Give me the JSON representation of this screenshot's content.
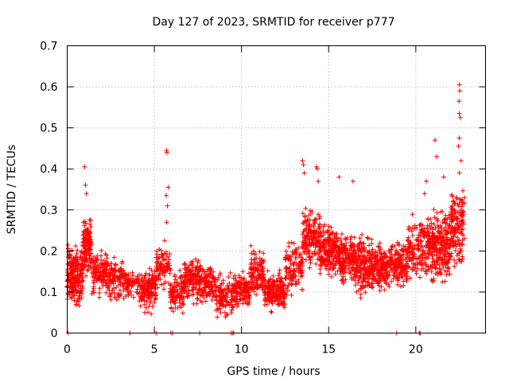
{
  "chart_data": {
    "type": "scatter",
    "title": "Day 127 of 2023, SRMTID for receiver p777",
    "xlabel": "GPS time / hours",
    "ylabel": "SRMTID / TECUs",
    "xlim": [
      0,
      24
    ],
    "ylim": [
      0,
      0.7
    ],
    "x_ticks": [
      0,
      5,
      10,
      15,
      20
    ],
    "x_tick_labels": [
      "0",
      "5",
      "10",
      "15",
      "20"
    ],
    "y_ticks": [
      0,
      0.1,
      0.2,
      0.3,
      0.4,
      0.5,
      0.6,
      0.7
    ],
    "y_tick_labels": [
      "0",
      "0.1",
      "0.2",
      "0.3",
      "0.4",
      "0.5",
      "0.6",
      "0.7"
    ],
    "grid": true,
    "marker": "plus",
    "color": "#ff0000",
    "series": [
      {
        "name": "SRMTID",
        "segments": [
          {
            "x": [
              0.0,
              0.9
            ],
            "y": [
              0.05,
              0.23
            ],
            "count": 220
          },
          {
            "x": [
              0.9,
              1.4
            ],
            "y": [
              0.13,
              0.3
            ],
            "count": 120
          },
          {
            "x": [
              1.4,
              2.4
            ],
            "y": [
              0.07,
              0.22
            ],
            "count": 130
          },
          {
            "x": [
              2.4,
              3.4
            ],
            "y": [
              0.06,
              0.2
            ],
            "count": 110
          },
          {
            "x": [
              3.4,
              4.2
            ],
            "y": [
              0.07,
              0.17
            ],
            "count": 60
          },
          {
            "x": [
              4.2,
              5.1
            ],
            "y": [
              0.04,
              0.17
            ],
            "count": 140
          },
          {
            "x": [
              5.1,
              5.9
            ],
            "y": [
              0.09,
              0.24
            ],
            "count": 80
          },
          {
            "x": [
              5.9,
              6.7
            ],
            "y": [
              0.04,
              0.16
            ],
            "count": 100
          },
          {
            "x": [
              6.7,
              7.6
            ],
            "y": [
              0.06,
              0.2
            ],
            "count": 140
          },
          {
            "x": [
              7.6,
              8.5
            ],
            "y": [
              0.06,
              0.18
            ],
            "count": 120
          },
          {
            "x": [
              8.5,
              9.5
            ],
            "y": [
              0.02,
              0.16
            ],
            "count": 110
          },
          {
            "x": [
              9.5,
              10.5
            ],
            "y": [
              0.05,
              0.16
            ],
            "count": 130
          },
          {
            "x": [
              10.5,
              11.3
            ],
            "y": [
              0.08,
              0.22
            ],
            "count": 120
          },
          {
            "x": [
              11.3,
              12.5
            ],
            "y": [
              0.04,
              0.16
            ],
            "count": 200
          },
          {
            "x": [
              12.5,
              13.5
            ],
            "y": [
              0.07,
              0.24
            ],
            "count": 120
          },
          {
            "x": [
              13.5,
              14.5
            ],
            "y": [
              0.15,
              0.32
            ],
            "count": 160
          },
          {
            "x": [
              14.5,
              15.5
            ],
            "y": [
              0.12,
              0.28
            ],
            "count": 180
          },
          {
            "x": [
              15.5,
              16.5
            ],
            "y": [
              0.1,
              0.27
            ],
            "count": 180
          },
          {
            "x": [
              16.5,
              17.5
            ],
            "y": [
              0.08,
              0.25
            ],
            "count": 180
          },
          {
            "x": [
              17.5,
              18.5
            ],
            "y": [
              0.08,
              0.24
            ],
            "count": 170
          },
          {
            "x": [
              18.5,
              19.5
            ],
            "y": [
              0.1,
              0.24
            ],
            "count": 150
          },
          {
            "x": [
              19.5,
              20.3
            ],
            "y": [
              0.1,
              0.3
            ],
            "count": 100
          },
          {
            "x": [
              20.3,
              21.2
            ],
            "y": [
              0.1,
              0.32
            ],
            "count": 160
          },
          {
            "x": [
              21.2,
              22.0
            ],
            "y": [
              0.1,
              0.33
            ],
            "count": 160
          },
          {
            "x": [
              22.0,
              22.8
            ],
            "y": [
              0.14,
              0.38
            ],
            "count": 140
          }
        ],
        "highlights": [
          {
            "x": 1.0,
            "y": 0.405
          },
          {
            "x": 1.05,
            "y": 0.36
          },
          {
            "x": 1.1,
            "y": 0.34
          },
          {
            "x": 5.7,
            "y": 0.445
          },
          {
            "x": 5.72,
            "y": 0.44
          },
          {
            "x": 5.8,
            "y": 0.355
          },
          {
            "x": 5.68,
            "y": 0.335
          },
          {
            "x": 5.75,
            "y": 0.31
          },
          {
            "x": 5.7,
            "y": 0.27
          },
          {
            "x": 13.5,
            "y": 0.42
          },
          {
            "x": 13.55,
            "y": 0.41
          },
          {
            "x": 13.6,
            "y": 0.39
          },
          {
            "x": 14.3,
            "y": 0.405
          },
          {
            "x": 14.35,
            "y": 0.4
          },
          {
            "x": 14.4,
            "y": 0.37
          },
          {
            "x": 15.6,
            "y": 0.38
          },
          {
            "x": 16.4,
            "y": 0.37
          },
          {
            "x": 20.6,
            "y": 0.37
          },
          {
            "x": 20.5,
            "y": 0.34
          },
          {
            "x": 21.1,
            "y": 0.47
          },
          {
            "x": 21.2,
            "y": 0.43
          },
          {
            "x": 21.6,
            "y": 0.38
          },
          {
            "x": 22.5,
            "y": 0.605
          },
          {
            "x": 22.52,
            "y": 0.59
          },
          {
            "x": 22.48,
            "y": 0.565
          },
          {
            "x": 22.5,
            "y": 0.535
          },
          {
            "x": 22.55,
            "y": 0.525
          },
          {
            "x": 22.5,
            "y": 0.475
          },
          {
            "x": 22.45,
            "y": 0.455
          },
          {
            "x": 22.6,
            "y": 0.42
          },
          {
            "x": 22.5,
            "y": 0.39
          }
        ],
        "zero_points_x": [
          0.05,
          3.6,
          5.1,
          5.95,
          6.05,
          7.6,
          9.4,
          9.5,
          9.55,
          18.9,
          20.2,
          20.25
        ]
      }
    ]
  }
}
